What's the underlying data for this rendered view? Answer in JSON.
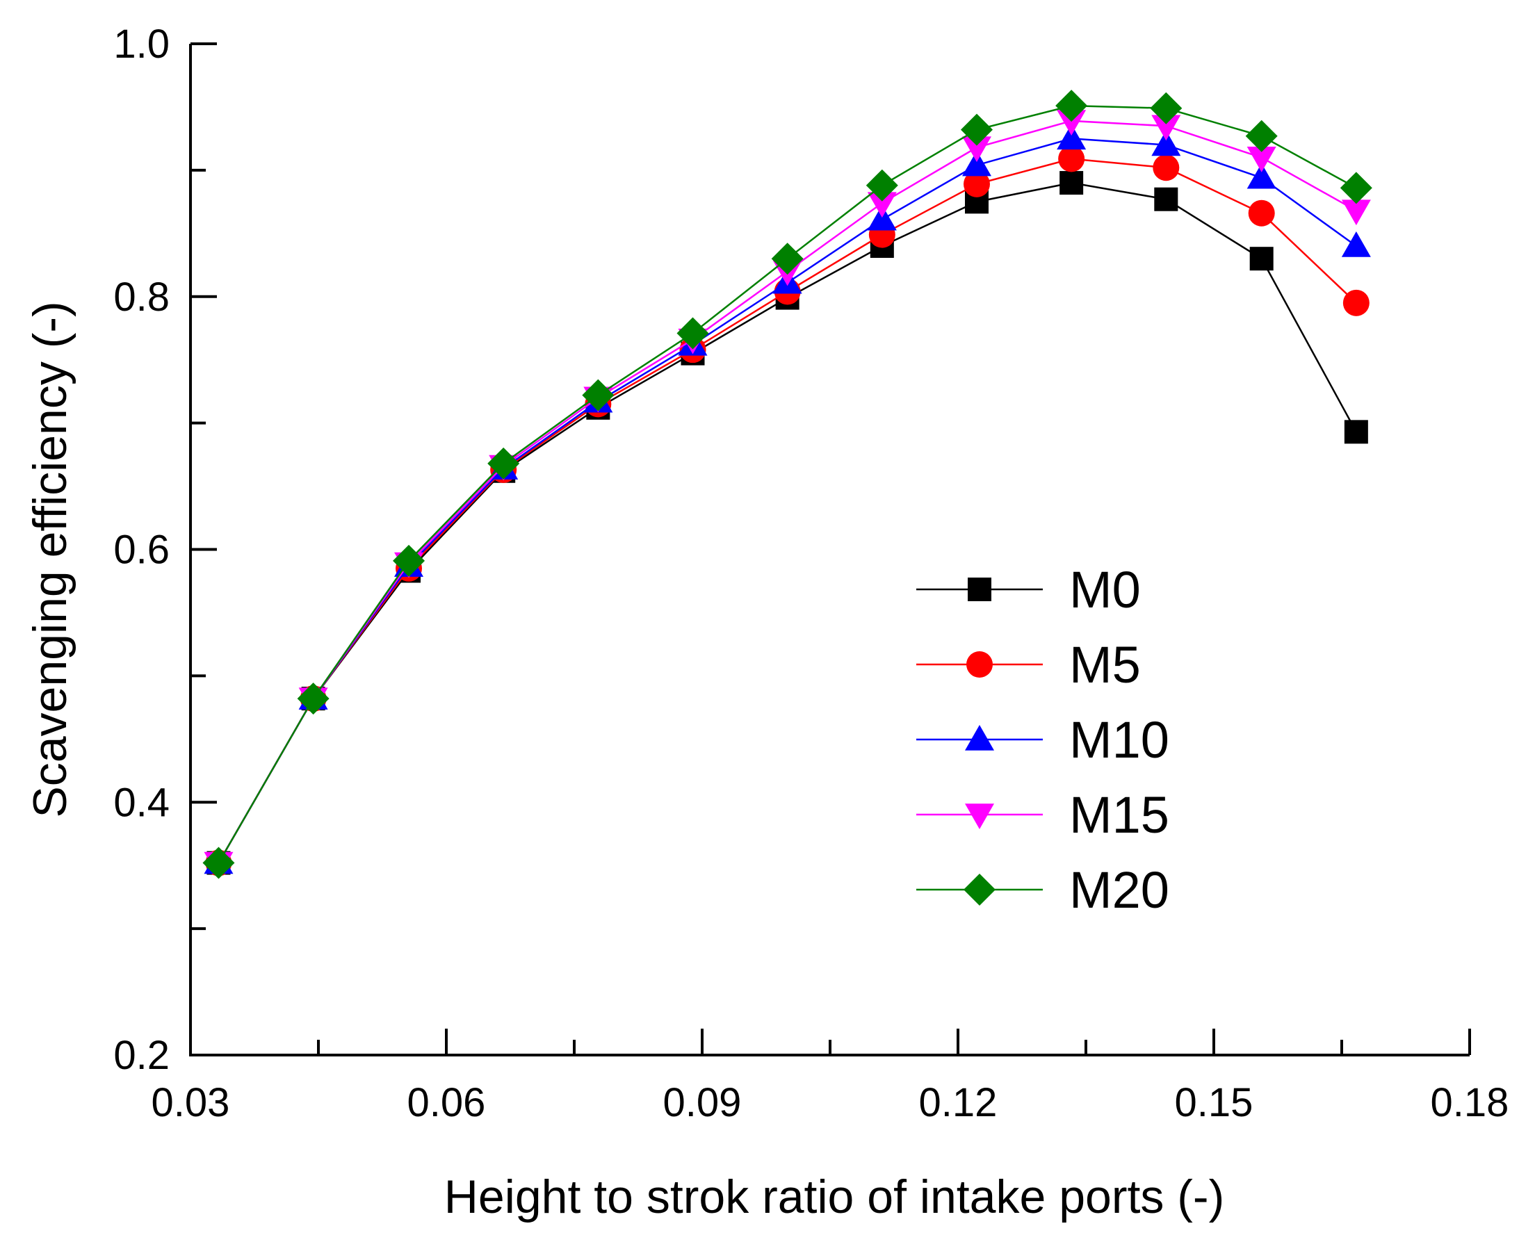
{
  "chart_data": {
    "type": "line",
    "title": "",
    "xlabel": "Height to strok ratio of intake ports (-)",
    "ylabel": "Scavenging efficiency (-)",
    "xlim": [
      0.03,
      0.18
    ],
    "ylim": [
      0.2,
      1.0
    ],
    "x_ticks": [
      "0.03",
      "0.06",
      "0.09",
      "0.12",
      "0.15",
      "0.18"
    ],
    "y_ticks": [
      "0.2",
      "0.4",
      "0.6",
      "0.8",
      "1.0"
    ],
    "grid": false,
    "legend_position": "right",
    "x": [
      0.0333,
      0.0444,
      0.0556,
      0.0667,
      0.0778,
      0.0889,
      0.1,
      0.1111,
      0.1222,
      0.1333,
      0.1444,
      0.1556,
      0.1667
    ],
    "series": [
      {
        "name": "M0",
        "color": "#000000",
        "marker": "square",
        "values": [
          0.352,
          0.482,
          0.583,
          0.662,
          0.712,
          0.755,
          0.799,
          0.84,
          0.875,
          0.89,
          0.877,
          0.83,
          0.693
        ]
      },
      {
        "name": "M5",
        "color": "#ff0000",
        "marker": "circle",
        "values": [
          0.352,
          0.482,
          0.585,
          0.663,
          0.715,
          0.758,
          0.804,
          0.849,
          0.889,
          0.909,
          0.902,
          0.866,
          0.795
        ]
      },
      {
        "name": "M10",
        "color": "#0000ff",
        "marker": "triangle-up",
        "values": [
          0.352,
          0.482,
          0.587,
          0.664,
          0.717,
          0.762,
          0.811,
          0.861,
          0.904,
          0.925,
          0.92,
          0.894,
          0.84
        ]
      },
      {
        "name": "M15",
        "color": "#ff00ff",
        "marker": "triangle-down",
        "values": [
          0.352,
          0.482,
          0.589,
          0.666,
          0.72,
          0.766,
          0.82,
          0.874,
          0.918,
          0.939,
          0.935,
          0.91,
          0.868
        ]
      },
      {
        "name": "M20",
        "color": "#008000",
        "marker": "diamond",
        "values": [
          0.352,
          0.482,
          0.591,
          0.668,
          0.722,
          0.771,
          0.83,
          0.888,
          0.932,
          0.951,
          0.949,
          0.927,
          0.886
        ]
      }
    ]
  }
}
